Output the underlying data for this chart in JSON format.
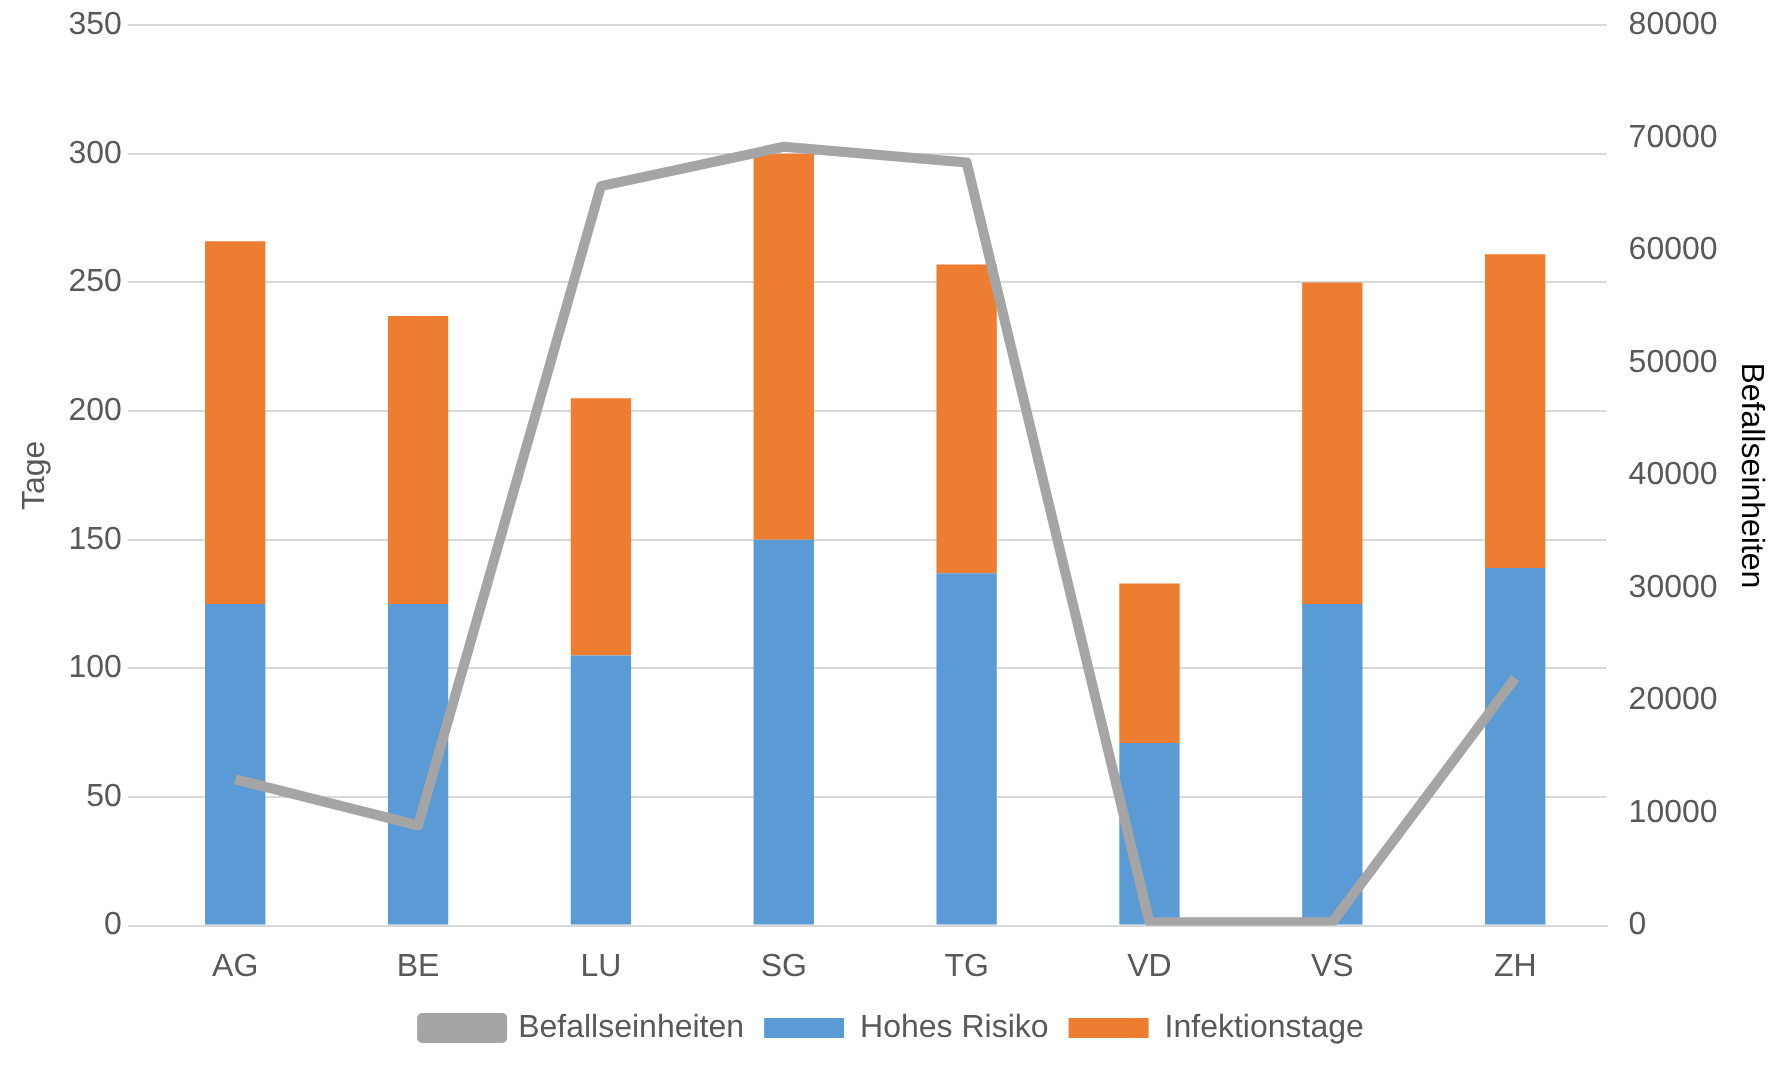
{
  "chart_data": {
    "type": "bar",
    "stacked": true,
    "ylabel": "Tage",
    "y2label": "Befallseinheiten",
    "categories": [
      "AG",
      "BE",
      "LU",
      "SG",
      "TG",
      "VD",
      "VS",
      "ZH"
    ],
    "series": [
      {
        "name": "Hohes Risiko",
        "color": "#5b9bd5",
        "values": [
          125,
          125,
          105,
          150,
          137,
          71,
          125,
          139
        ]
      },
      {
        "name": "Infektionstage",
        "color": "#ed7d31",
        "values": [
          141,
          112,
          100,
          150,
          120,
          62,
          125,
          122
        ]
      },
      {
        "name": "Befallseinheiten",
        "type": "line",
        "axis": "y2",
        "color": "#a5a5a5",
        "values": [
          13000,
          8900,
          65700,
          69200,
          67800,
          300,
          300,
          22000
        ]
      }
    ],
    "ylim": [
      0,
      350
    ],
    "yticks": [
      0,
      50,
      100,
      150,
      200,
      250,
      300,
      350
    ],
    "y2lim": [
      0,
      80000
    ],
    "y2ticks": [
      0,
      10000,
      20000,
      30000,
      40000,
      50000,
      60000,
      70000,
      80000
    ],
    "grid": "y",
    "legend": "bottom",
    "marker": "none"
  }
}
